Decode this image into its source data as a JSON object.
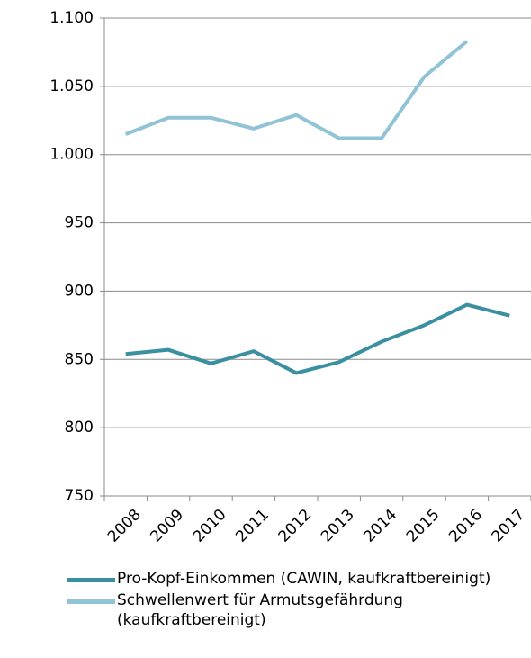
{
  "chart_data": {
    "type": "line",
    "categories": [
      "2008",
      "2009",
      "2010",
      "2011",
      "2012",
      "2013",
      "2014",
      "2015",
      "2016",
      "2017"
    ],
    "series": [
      {
        "name": "Pro-Kopf-Einkommen (CAWIN, kaufkraftbereinigt)",
        "color": "#3a8fa1",
        "values": [
          854,
          857,
          847,
          856,
          840,
          848,
          863,
          875,
          890,
          882
        ]
      },
      {
        "name": "Schwellenwert für Armutsgefährdung (kaufkraftbereinigt)",
        "color": "#8fc3d5",
        "values": [
          1015,
          1027,
          1027,
          1019,
          1029,
          1012,
          1012,
          1057,
          1083,
          null
        ]
      }
    ],
    "ylim": [
      750,
      1100
    ],
    "yticks": [
      750,
      800,
      850,
      900,
      950,
      {
        "value": 1000,
        "label": "1.000"
      },
      {
        "value": 1050,
        "label": "1.050"
      },
      {
        "value": 1100,
        "label": "1.100"
      }
    ],
    "grid": true
  }
}
